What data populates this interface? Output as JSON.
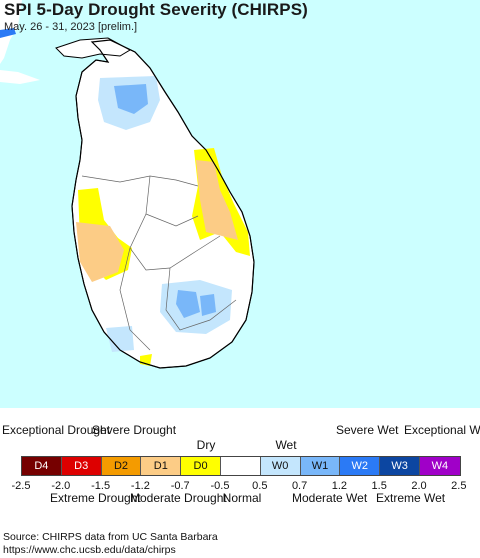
{
  "map": {
    "title": "SPI 5-Day Drought Severity (CHIRPS)",
    "subtitle": "May. 26 - 31, 2023 [prelim.]",
    "colors": {
      "water": "#ccffff",
      "land": "#ffffff",
      "d0": "#ffff00",
      "d1": "#fccc86",
      "w0": "#c4e6fd",
      "w1": "#79b7f9",
      "w2": "#2b7af5",
      "border": "#000000"
    }
  },
  "legend": {
    "top_labels": [
      "Exceptional Drought",
      "Severe Drought",
      "Dry",
      "Wet",
      "Severe Wet",
      "Exceptional Wet"
    ],
    "bottom_labels": [
      "Normal",
      "Extreme Drought",
      "Moderate Drought",
      "Moderate Wet",
      "Extreme Wet"
    ],
    "categories": [
      {
        "code": "D4",
        "color": "#760000"
      },
      {
        "code": "D3",
        "color": "#dd0000"
      },
      {
        "code": "D2",
        "color": "#f49b00"
      },
      {
        "code": "D1",
        "color": "#fccc86"
      },
      {
        "code": "D0",
        "color": "#ffff00"
      },
      {
        "code": "",
        "color": "#ffffff"
      },
      {
        "code": "W0",
        "color": "#c4e6fd"
      },
      {
        "code": "W1",
        "color": "#79b7f9"
      },
      {
        "code": "W2",
        "color": "#2b7af5"
      },
      {
        "code": "W3",
        "color": "#0c46a1"
      },
      {
        "code": "W4",
        "color": "#a000c8"
      }
    ],
    "ticks": [
      "-2.5",
      "-2.0",
      "-1.5",
      "-1.2",
      "-0.7",
      "-0.5",
      "0.5",
      "0.7",
      "1.2",
      "1.5",
      "2.0",
      "2.5"
    ]
  },
  "source": {
    "line1": "Source: CHIRPS data from UC Santa Barbara",
    "line2": "https://www.chc.ucsb.edu/data/chirps"
  }
}
